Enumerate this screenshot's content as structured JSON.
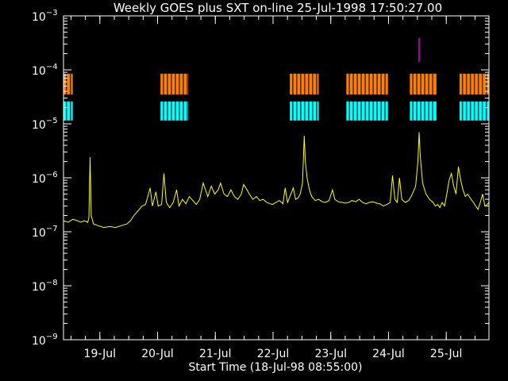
{
  "chart_data": {
    "type": "line",
    "title": "Weekly GOES plus SXT on-line 25-Jul-1998 17:50:27.00",
    "xlabel": "Start Time (18-Jul-98 08:55:00)",
    "ylabel": "",
    "yscale": "log",
    "ylim": [
      1e-09,
      0.001
    ],
    "xlim_days_from_start": [
      0,
      7.37
    ],
    "y_ticks": [
      {
        "value": 1e-09,
        "base": "10",
        "exp": "−9"
      },
      {
        "value": 1e-08,
        "base": "10",
        "exp": "−8"
      },
      {
        "value": 1e-07,
        "base": "10",
        "exp": "−7"
      },
      {
        "value": 1e-06,
        "base": "10",
        "exp": "−6"
      },
      {
        "value": 1e-05,
        "base": "10",
        "exp": "−5"
      },
      {
        "value": 0.0001,
        "base": "10",
        "exp": "−4"
      },
      {
        "value": 0.001,
        "base": "10",
        "exp": "−3"
      }
    ],
    "x_ticks": [
      {
        "label": "19-Jul",
        "day": 0.63
      },
      {
        "label": "20-Jul",
        "day": 1.63
      },
      {
        "label": "21-Jul",
        "day": 2.63
      },
      {
        "label": "22-Jul",
        "day": 3.63
      },
      {
        "label": "23-Jul",
        "day": 4.63
      },
      {
        "label": "24-Jul",
        "day": 5.63
      },
      {
        "label": "25-Jul",
        "day": 6.63
      }
    ],
    "series": [
      {
        "color": "#ffff00",
        "points": [
          [
            0.0,
            1.6e-07
          ],
          [
            0.08,
            1.5e-07
          ],
          [
            0.16,
            1.7e-07
          ],
          [
            0.24,
            1.6e-07
          ],
          [
            0.3,
            1.5e-07
          ],
          [
            0.36,
            1.6e-07
          ],
          [
            0.42,
            1.5e-07
          ],
          [
            0.44,
            1.8e-07
          ],
          [
            0.46,
            2.4e-06
          ],
          [
            0.48,
            2e-07
          ],
          [
            0.52,
            1.4e-07
          ],
          [
            0.6,
            1.3e-07
          ],
          [
            0.7,
            1.2e-07
          ],
          [
            0.8,
            1.25e-07
          ],
          [
            0.9,
            1.2e-07
          ],
          [
            1.0,
            1.3e-07
          ],
          [
            1.1,
            1.4e-07
          ],
          [
            1.16,
            1.6e-07
          ],
          [
            1.22,
            2e-07
          ],
          [
            1.3,
            2.5e-07
          ],
          [
            1.36,
            3e-07
          ],
          [
            1.42,
            3.2e-07
          ],
          [
            1.46,
            4.5e-07
          ],
          [
            1.5,
            6.5e-07
          ],
          [
            1.54,
            3e-07
          ],
          [
            1.6,
            5.5e-07
          ],
          [
            1.64,
            3e-07
          ],
          [
            1.7,
            3.2e-07
          ],
          [
            1.74,
            1.2e-06
          ],
          [
            1.78,
            3.5e-07
          ],
          [
            1.84,
            2.8e-07
          ],
          [
            1.9,
            3.5e-07
          ],
          [
            1.96,
            6e-07
          ],
          [
            2.0,
            3e-07
          ],
          [
            2.06,
            4e-07
          ],
          [
            2.12,
            3.3e-07
          ],
          [
            2.18,
            4.5e-07
          ],
          [
            2.24,
            3.8e-07
          ],
          [
            2.3,
            3.2e-07
          ],
          [
            2.36,
            4e-07
          ],
          [
            2.42,
            8e-07
          ],
          [
            2.46,
            6e-07
          ],
          [
            2.5,
            4.5e-07
          ],
          [
            2.56,
            7e-07
          ],
          [
            2.62,
            5e-07
          ],
          [
            2.68,
            6e-07
          ],
          [
            2.72,
            8e-07
          ],
          [
            2.78,
            5e-07
          ],
          [
            2.84,
            4.5e-07
          ],
          [
            2.9,
            6e-07
          ],
          [
            2.96,
            4.5e-07
          ],
          [
            3.02,
            4e-07
          ],
          [
            3.08,
            5e-07
          ],
          [
            3.12,
            7.5e-07
          ],
          [
            3.16,
            6.5e-07
          ],
          [
            3.22,
            5e-07
          ],
          [
            3.28,
            4e-07
          ],
          [
            3.34,
            4.5e-07
          ],
          [
            3.4,
            3.8e-07
          ],
          [
            3.46,
            4e-07
          ],
          [
            3.52,
            3.5e-07
          ],
          [
            3.58,
            3.3e-07
          ],
          [
            3.62,
            3.2e-07
          ],
          [
            3.68,
            3.5e-07
          ],
          [
            3.74,
            3.8e-07
          ],
          [
            3.8,
            3.3e-07
          ],
          [
            3.84,
            6.5e-07
          ],
          [
            3.88,
            3.5e-07
          ],
          [
            3.94,
            5e-07
          ],
          [
            3.98,
            6.5e-07
          ],
          [
            4.02,
            4e-07
          ],
          [
            4.06,
            4.2e-07
          ],
          [
            4.1,
            5e-07
          ],
          [
            4.14,
            8e-07
          ],
          [
            4.17,
            6e-06
          ],
          [
            4.19,
            2e-06
          ],
          [
            4.22,
            1e-06
          ],
          [
            4.26,
            6e-07
          ],
          [
            4.3,
            4.5e-07
          ],
          [
            4.36,
            3.8e-07
          ],
          [
            4.42,
            4e-07
          ],
          [
            4.48,
            3.6e-07
          ],
          [
            4.54,
            3.5e-07
          ],
          [
            4.6,
            3.8e-07
          ],
          [
            4.66,
            6e-07
          ],
          [
            4.7,
            4e-07
          ],
          [
            4.76,
            3.6e-07
          ],
          [
            4.82,
            3.5e-07
          ],
          [
            4.88,
            3.4e-07
          ],
          [
            4.94,
            3.5e-07
          ],
          [
            5.0,
            3.8e-07
          ],
          [
            5.06,
            3.6e-07
          ],
          [
            5.12,
            4e-07
          ],
          [
            5.18,
            3.5e-07
          ],
          [
            5.24,
            3.3e-07
          ],
          [
            5.3,
            3.5e-07
          ],
          [
            5.36,
            3.6e-07
          ],
          [
            5.42,
            3.4e-07
          ],
          [
            5.48,
            3.3e-07
          ],
          [
            5.54,
            3e-07
          ],
          [
            5.6,
            3.2e-07
          ],
          [
            5.66,
            3.5e-07
          ],
          [
            5.7,
            1.1e-06
          ],
          [
            5.74,
            4e-07
          ],
          [
            5.78,
            3.5e-07
          ],
          [
            5.82,
            1e-06
          ],
          [
            5.86,
            4e-07
          ],
          [
            5.92,
            3.5e-07
          ],
          [
            5.98,
            3.8e-07
          ],
          [
            6.02,
            4.5e-07
          ],
          [
            6.06,
            5.5e-07
          ],
          [
            6.1,
            7e-07
          ],
          [
            6.14,
            2e-06
          ],
          [
            6.16,
            7e-06
          ],
          [
            6.18,
            2.5e-06
          ],
          [
            6.22,
            8e-07
          ],
          [
            6.28,
            5e-07
          ],
          [
            6.34,
            4e-07
          ],
          [
            6.4,
            3.5e-07
          ],
          [
            6.44,
            3e-07
          ],
          [
            6.48,
            3.2e-07
          ],
          [
            6.52,
            2.8e-07
          ],
          [
            6.56,
            3.5e-07
          ],
          [
            6.6,
            3e-07
          ],
          [
            6.64,
            5e-07
          ],
          [
            6.68,
            9e-07
          ],
          [
            6.72,
            1.2e-06
          ],
          [
            6.76,
            7e-07
          ],
          [
            6.8,
            5e-07
          ],
          [
            6.84,
            1.6e-06
          ],
          [
            6.88,
            9e-07
          ],
          [
            6.92,
            6e-07
          ],
          [
            6.96,
            4.5e-07
          ],
          [
            7.0,
            5e-07
          ],
          [
            7.06,
            4e-07
          ],
          [
            7.1,
            3.5e-07
          ],
          [
            7.14,
            3e-07
          ],
          [
            7.18,
            2.6e-07
          ],
          [
            7.22,
            3.5e-07
          ],
          [
            7.26,
            5e-07
          ],
          [
            7.3,
            3e-07
          ],
          [
            7.34,
            3.2e-07
          ],
          [
            7.37,
            3.5e-07
          ]
        ]
      }
    ],
    "coverage_bars": [
      {
        "color": "#ff8000",
        "y_low": 3.5e-05,
        "y_high": 8.5e-05,
        "spans": [
          [
            0.0,
            0.16
          ],
          [
            1.68,
            2.16
          ],
          [
            3.92,
            4.42
          ],
          [
            4.9,
            5.62
          ],
          [
            6.0,
            6.46
          ],
          [
            6.86,
            7.37
          ]
        ]
      },
      {
        "color": "#00ffff",
        "y_low": 1.15e-05,
        "y_high": 2.6e-05,
        "spans": [
          [
            0.0,
            0.16
          ],
          [
            1.68,
            2.16
          ],
          [
            3.92,
            4.42
          ],
          [
            4.9,
            5.62
          ],
          [
            6.0,
            6.46
          ],
          [
            6.86,
            7.37
          ]
        ]
      }
    ],
    "marker": {
      "color": "#ff00ff",
      "day": 6.16,
      "y_low": 0.00014,
      "y_high": 0.00039
    },
    "grid": false,
    "legend": "none"
  }
}
